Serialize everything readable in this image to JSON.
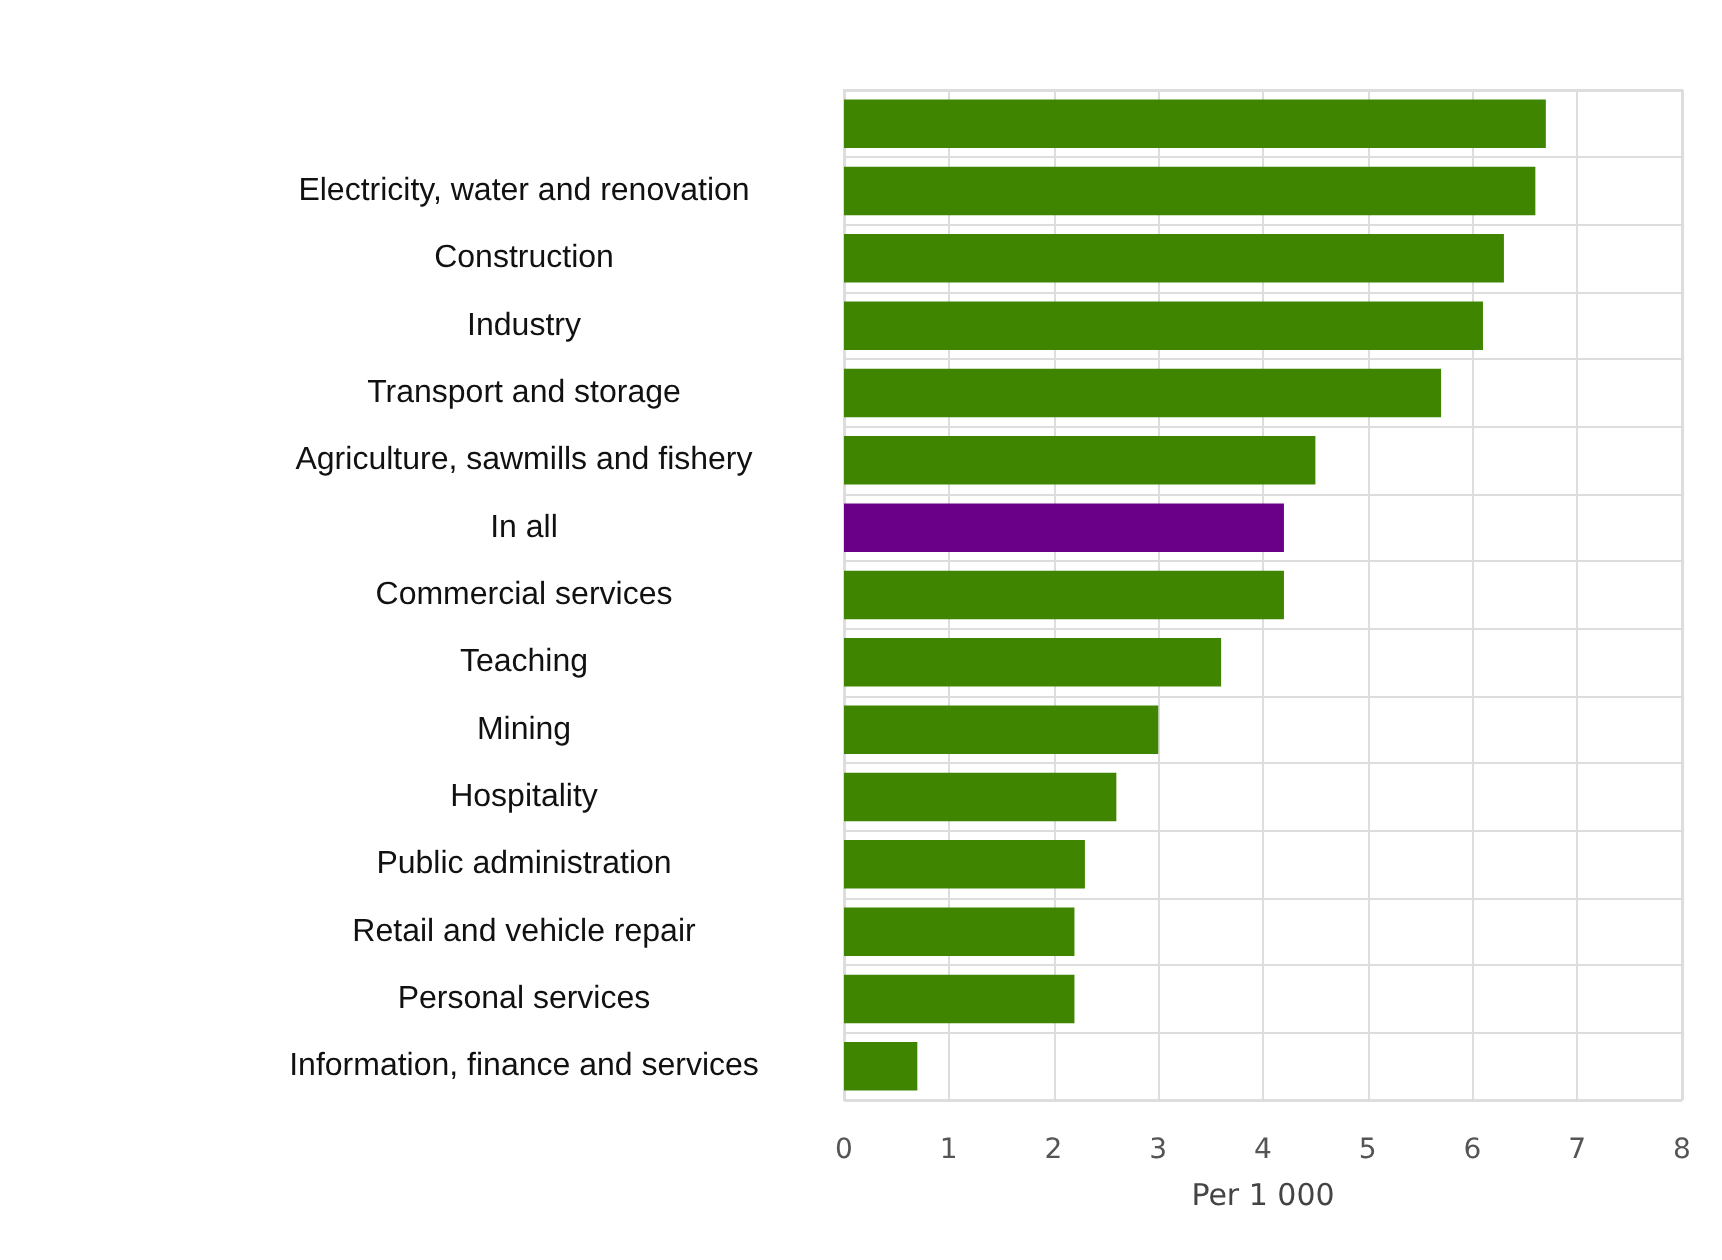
{
  "chart_data": {
    "type": "bar",
    "orientation": "horizontal",
    "xlabel": "Per 1 000",
    "categories": [
      null,
      "Electricity, water and renovation",
      "Construction",
      "Industry",
      "Transport and storage",
      "Agriculture, sawmills and fishery",
      "In all",
      "Commercial services",
      "Teaching",
      "Mining",
      "Hospitality",
      "Public administration",
      "Retail and vehicle repair",
      "Personal services",
      "Information, finance and services"
    ],
    "values": [
      6.7,
      6.6,
      6.3,
      6.1,
      5.7,
      4.5,
      4.2,
      4.2,
      3.6,
      3.0,
      2.6,
      2.3,
      2.2,
      2.2,
      0.7
    ],
    "colors": [
      "#3f8500",
      "#3f8500",
      "#3f8500",
      "#3f8500",
      "#3f8500",
      "#3f8500",
      "#6a0088",
      "#3f8500",
      "#3f8500",
      "#3f8500",
      "#3f8500",
      "#3f8500",
      "#3f8500",
      "#3f8500",
      "#3f8500"
    ],
    "xlim": [
      0,
      8
    ],
    "xticks": [
      0,
      1,
      2,
      3,
      4,
      5,
      6,
      7,
      8
    ],
    "grid": true
  }
}
